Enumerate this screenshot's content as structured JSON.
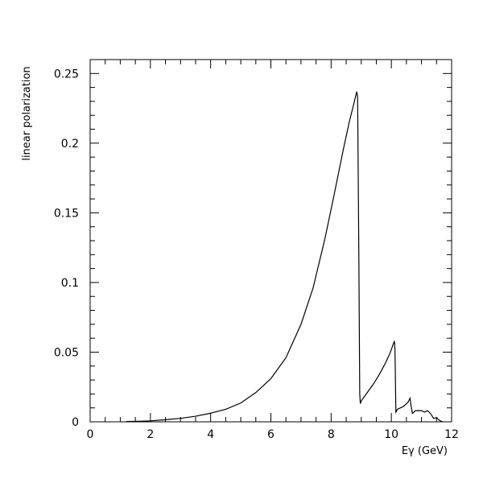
{
  "chart_data": {
    "type": "line",
    "title": "",
    "xlabel": "Eγ (GeV)",
    "ylabel": "linear polarization",
    "xlim": [
      0,
      12
    ],
    "ylim": [
      0,
      0.26
    ],
    "grid": false,
    "x_ticks": [
      0,
      2,
      4,
      6,
      8,
      10,
      12
    ],
    "x_tick_labels": [
      "0",
      "2",
      "4",
      "6",
      "8",
      "10",
      "12"
    ],
    "y_ticks": [
      0,
      0.05,
      0.1,
      0.15,
      0.2,
      0.25
    ],
    "y_tick_labels": [
      "0",
      "0.05",
      "0.1",
      "0.15",
      "0.2",
      "0.25"
    ],
    "series": [
      {
        "x": [
          1.2,
          1.6,
          2.0,
          2.5,
          3.0,
          3.5,
          4.0,
          4.5,
          5.0,
          5.5,
          6.0,
          6.5,
          7.0,
          7.4,
          7.8,
          8.1,
          8.4,
          8.6,
          8.75,
          8.85,
          8.88,
          8.92,
          8.95,
          8.97,
          9.0,
          9.2,
          9.4,
          9.6,
          9.8,
          9.95,
          10.05,
          10.1,
          10.12,
          10.15,
          10.2,
          10.4,
          10.55,
          10.62,
          10.65,
          10.7,
          10.8,
          11.0,
          11.1,
          11.2,
          11.3,
          11.4,
          11.5,
          11.6,
          11.7
        ],
        "y": [
          0.0002,
          0.0004,
          0.0007,
          0.0015,
          0.0025,
          0.004,
          0.0062,
          0.009,
          0.0135,
          0.021,
          0.031,
          0.046,
          0.07,
          0.096,
          0.132,
          0.163,
          0.195,
          0.215,
          0.228,
          0.237,
          0.233,
          0.12,
          0.02,
          0.013,
          0.015,
          0.021,
          0.027,
          0.034,
          0.042,
          0.049,
          0.055,
          0.058,
          0.052,
          0.007,
          0.009,
          0.011,
          0.014,
          0.017,
          0.012,
          0.006,
          0.008,
          0.008,
          0.007,
          0.008,
          0.006,
          0.0025,
          0.003,
          0.001,
          0.0
        ]
      }
    ]
  }
}
